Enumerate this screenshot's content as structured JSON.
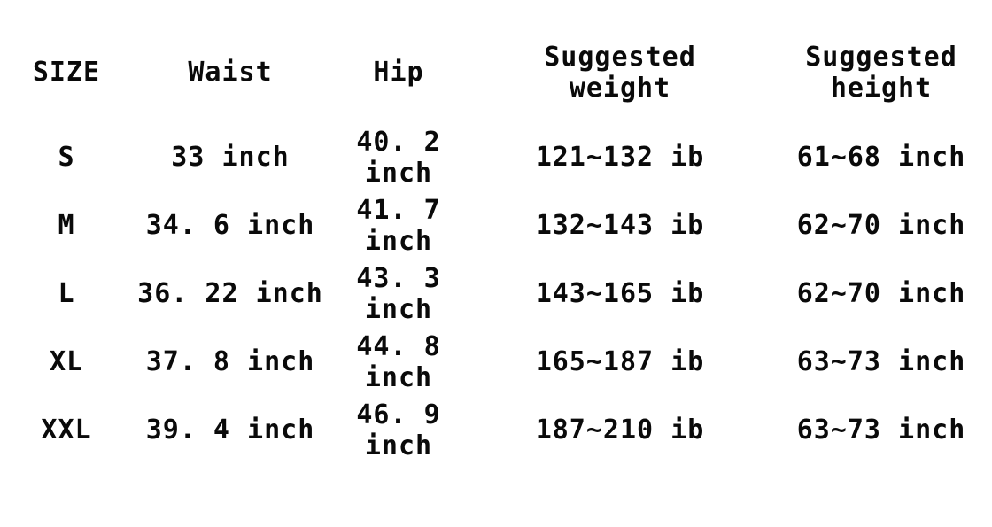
{
  "page": {
    "background_color": "#ffffff",
    "text_color": "#0a0a0a"
  },
  "table": {
    "columns": [
      {
        "label": "SIZE"
      },
      {
        "label": "Waist"
      },
      {
        "label": "Hip"
      },
      {
        "label": "Suggested\nweight"
      },
      {
        "label": "Suggested\nheight"
      }
    ],
    "rows": [
      [
        "S",
        "33 inch",
        "40. 2 inch",
        "121~132 ib",
        "61~68 inch"
      ],
      [
        "M",
        "34. 6 inch",
        "41. 7 inch",
        "132~143 ib",
        "62~70 inch"
      ],
      [
        "L",
        "36. 22 inch",
        "43. 3 inch",
        "143~165 ib",
        "62~70 inch"
      ],
      [
        "XL",
        "37. 8 inch",
        "44. 8 inch",
        "165~187 ib",
        "63~73 inch"
      ],
      [
        "XXL",
        "39. 4 inch",
        "46. 9 inch",
        "187~210 ib",
        "63~73 inch"
      ]
    ]
  },
  "chart_data": {
    "type": "table",
    "columns": [
      "SIZE",
      "Waist",
      "Hip",
      "Suggested weight",
      "Suggested height"
    ],
    "rows": [
      {
        "size": "S",
        "waist_inch": 33,
        "hip_inch": 40.2,
        "suggested_weight_ib": "121~132",
        "suggested_height_inch": "61~68"
      },
      {
        "size": "M",
        "waist_inch": 34.6,
        "hip_inch": 41.7,
        "suggested_weight_ib": "132~143",
        "suggested_height_inch": "62~70"
      },
      {
        "size": "L",
        "waist_inch": 36.22,
        "hip_inch": 43.3,
        "suggested_weight_ib": "143~165",
        "suggested_height_inch": "62~70"
      },
      {
        "size": "XL",
        "waist_inch": 37.8,
        "hip_inch": 44.8,
        "suggested_weight_ib": "165~187",
        "suggested_height_inch": "63~73"
      },
      {
        "size": "XXL",
        "waist_inch": 39.4,
        "hip_inch": 46.9,
        "suggested_weight_ib": "187~210",
        "suggested_height_inch": "63~73"
      }
    ],
    "units": {
      "waist": "inch",
      "hip": "inch",
      "weight": "ib",
      "height": "inch"
    },
    "grid": false,
    "notes": "plain black text on white background, no cell borders"
  }
}
